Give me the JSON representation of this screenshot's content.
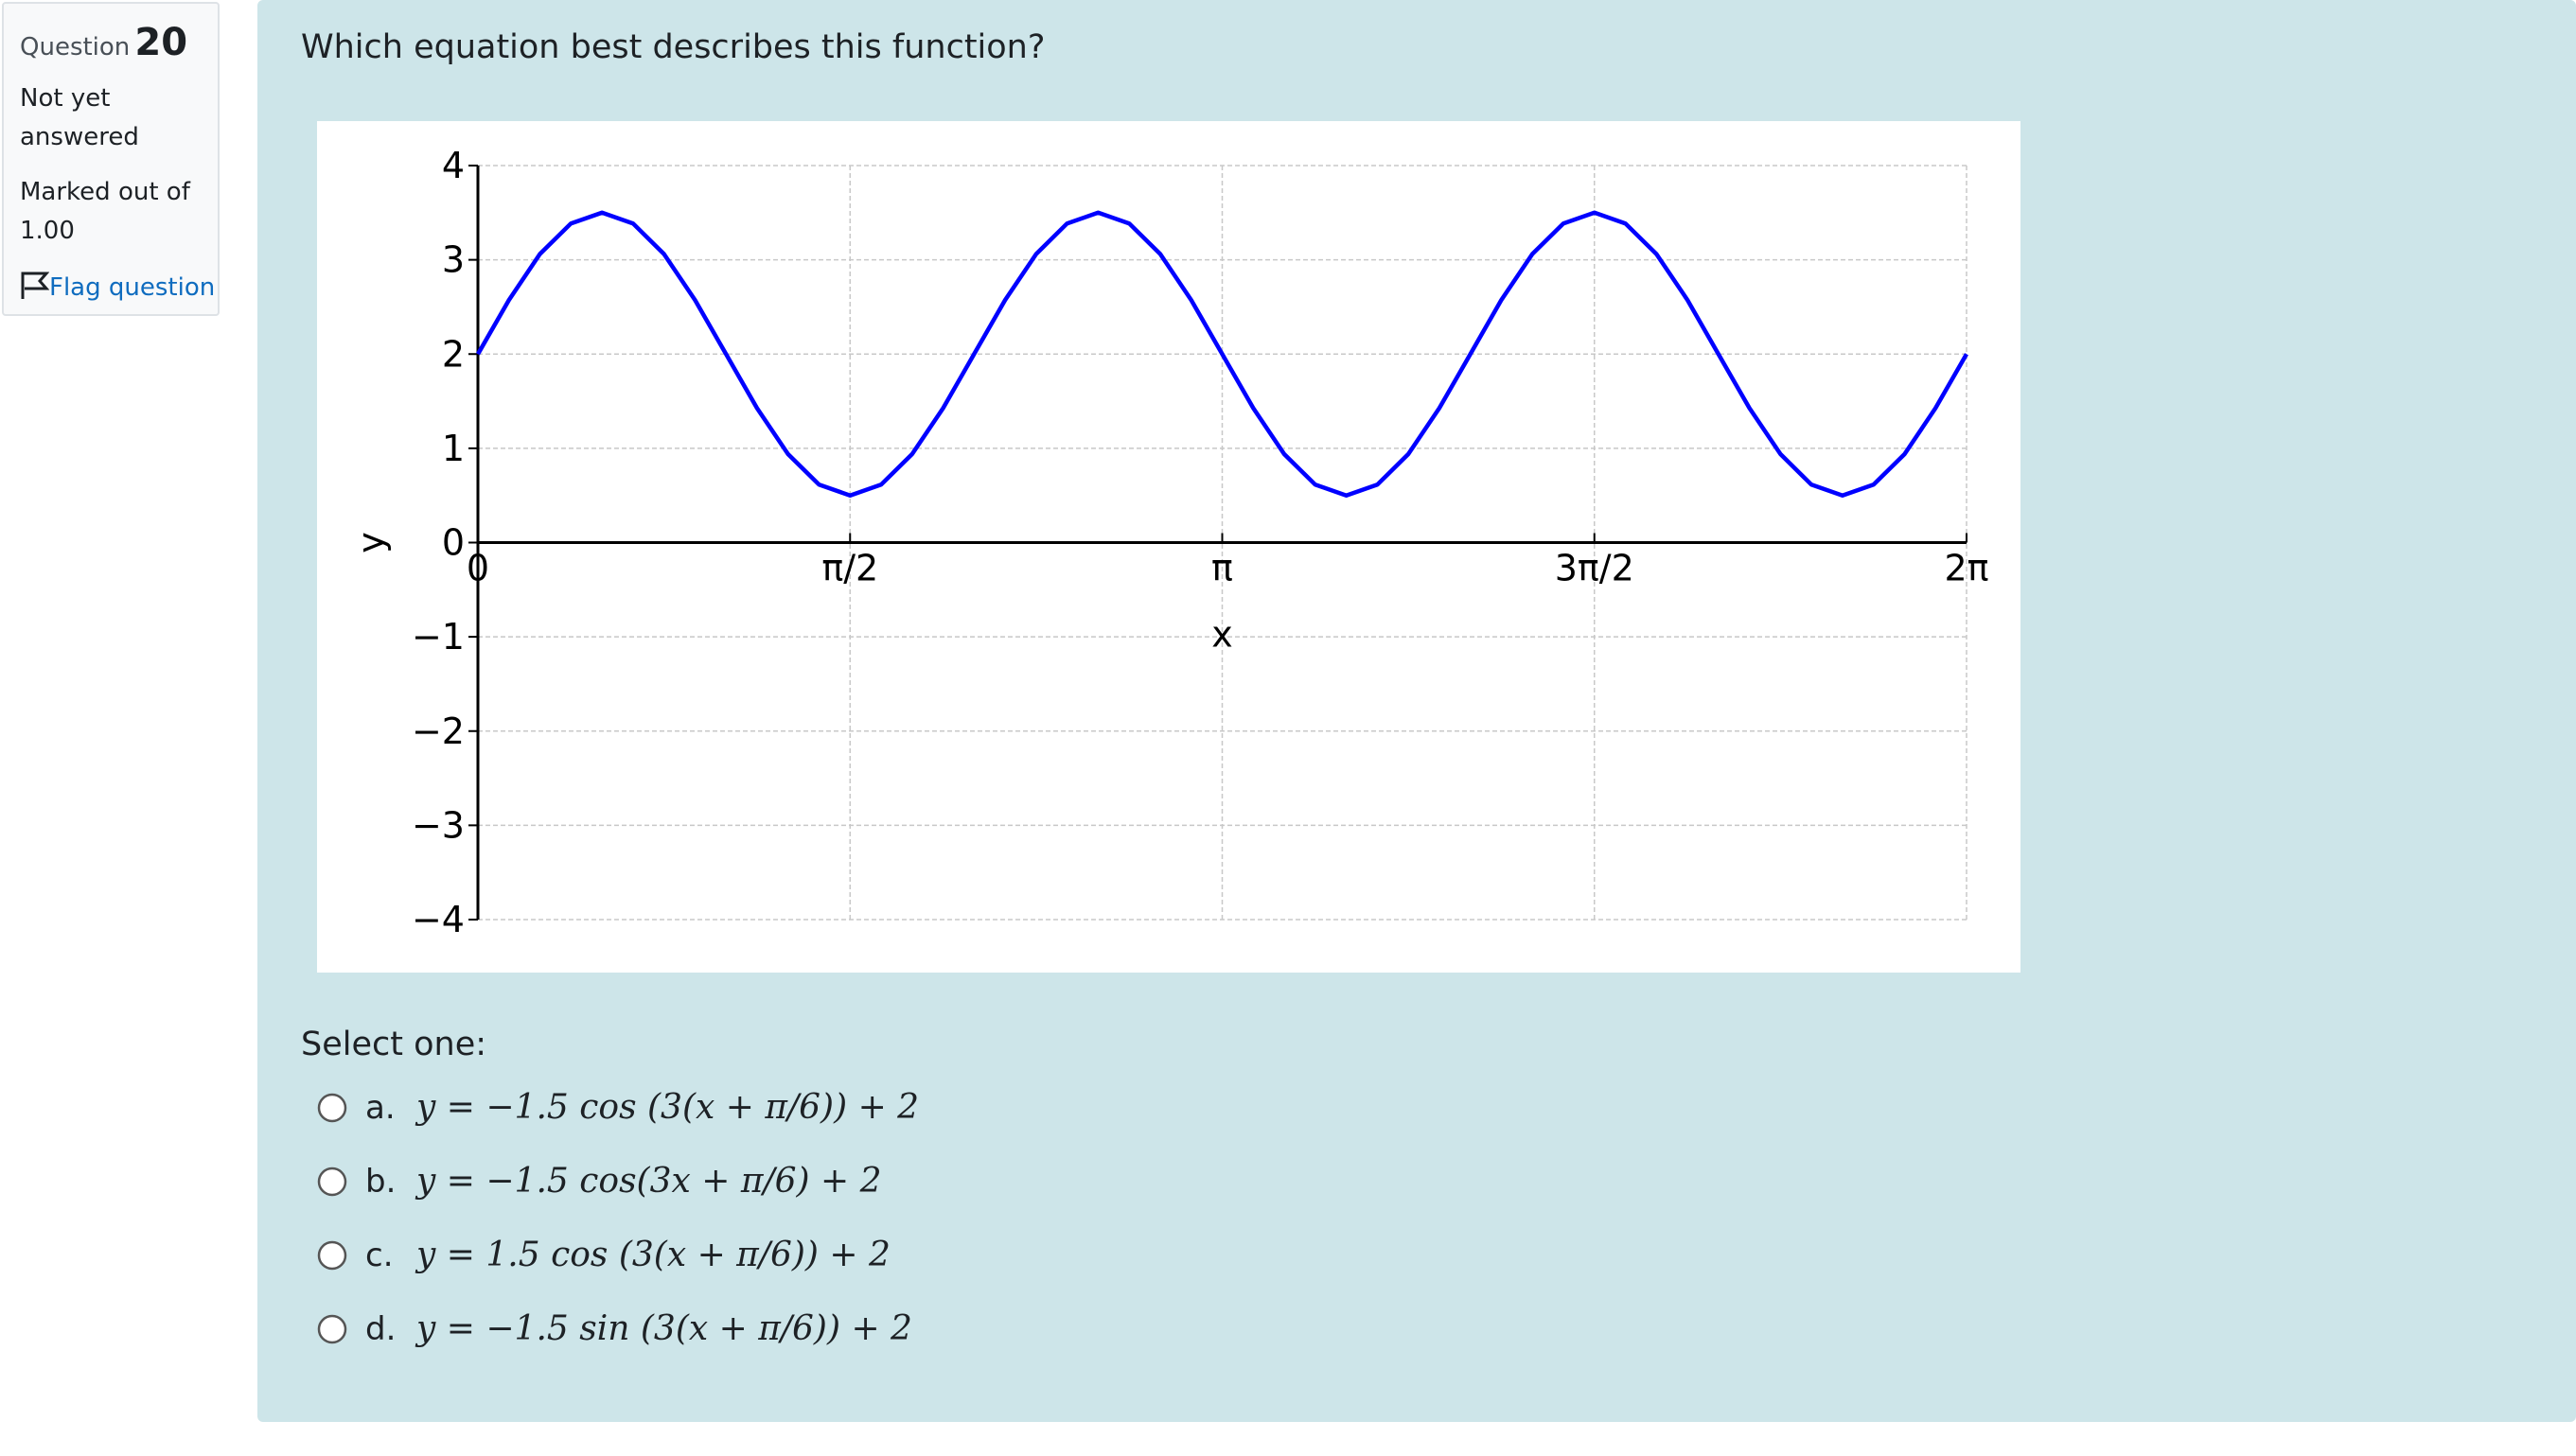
{
  "sidebar": {
    "question_label": "Question",
    "question_number": "20",
    "status": "Not yet answered",
    "marks": "Marked out of 1.00",
    "flag": "Flag question"
  },
  "question": {
    "text": "Which equation best describes this function?",
    "select": "Select one:",
    "options": [
      {
        "letter": "a.",
        "equation": "y = −1.5 cos (3(x + π/6)) + 2"
      },
      {
        "letter": "b.",
        "equation": "y = −1.5 cos(3x + π/6) + 2"
      },
      {
        "letter": "c.",
        "equation": "y = 1.5 cos (3(x + π/6)) + 2"
      },
      {
        "letter": "d.",
        "equation": "y = −1.5 sin (3(x + π/6)) + 2"
      }
    ]
  },
  "chart_data": {
    "type": "line",
    "xlabel": "x",
    "ylabel": "y",
    "color": "#0000ff",
    "grid": true,
    "x": [
      0,
      0.1309,
      0.2618,
      0.3927,
      0.5236,
      0.6545,
      0.7854,
      0.9163,
      1.0472,
      1.1781,
      1.309,
      1.4399,
      1.5708,
      1.7017,
      1.8326,
      1.9635,
      2.0944,
      2.2253,
      2.3562,
      2.4871,
      2.618,
      2.7489,
      2.8798,
      3.0107,
      3.1416,
      3.2725,
      3.4034,
      3.5343,
      3.6652,
      3.7961,
      3.927,
      4.0579,
      4.1888,
      4.3197,
      4.4506,
      4.5815,
      4.7124,
      4.8433,
      4.9742,
      5.1051,
      5.236,
      5.3669,
      5.4978,
      5.6287,
      5.7596,
      5.8905,
      6.0214,
      6.1523,
      6.2832
    ],
    "values": [
      2,
      2.574,
      3.061,
      3.386,
      3.5,
      3.386,
      3.061,
      2.574,
      2,
      1.426,
      0.939,
      0.614,
      0.5,
      0.614,
      0.939,
      1.426,
      2,
      2.574,
      3.061,
      3.386,
      3.5,
      3.386,
      3.061,
      2.574,
      2,
      1.426,
      0.939,
      0.614,
      0.5,
      0.614,
      0.939,
      1.426,
      2,
      2.574,
      3.061,
      3.386,
      3.5,
      3.386,
      3.061,
      2.574,
      2,
      1.426,
      0.939,
      0.614,
      0.5,
      0.614,
      0.939,
      1.426,
      2
    ],
    "xlim": [
      0,
      6.2832
    ],
    "ylim": [
      -4,
      4
    ],
    "xticks": [
      0,
      {
        "value": 1.5708,
        "label": "π/2"
      },
      {
        "value": 3.1416,
        "label": "π"
      },
      {
        "value": 4.7124,
        "label": "3π/2"
      },
      {
        "value": 6.2832,
        "label": "2π"
      }
    ],
    "yticks": [
      {
        "value": -4,
        "label": "−4"
      },
      {
        "value": -3,
        "label": "−3"
      },
      {
        "value": -2,
        "label": "−2"
      },
      {
        "value": -1,
        "label": "−1"
      },
      0,
      1,
      2,
      3,
      4
    ]
  }
}
